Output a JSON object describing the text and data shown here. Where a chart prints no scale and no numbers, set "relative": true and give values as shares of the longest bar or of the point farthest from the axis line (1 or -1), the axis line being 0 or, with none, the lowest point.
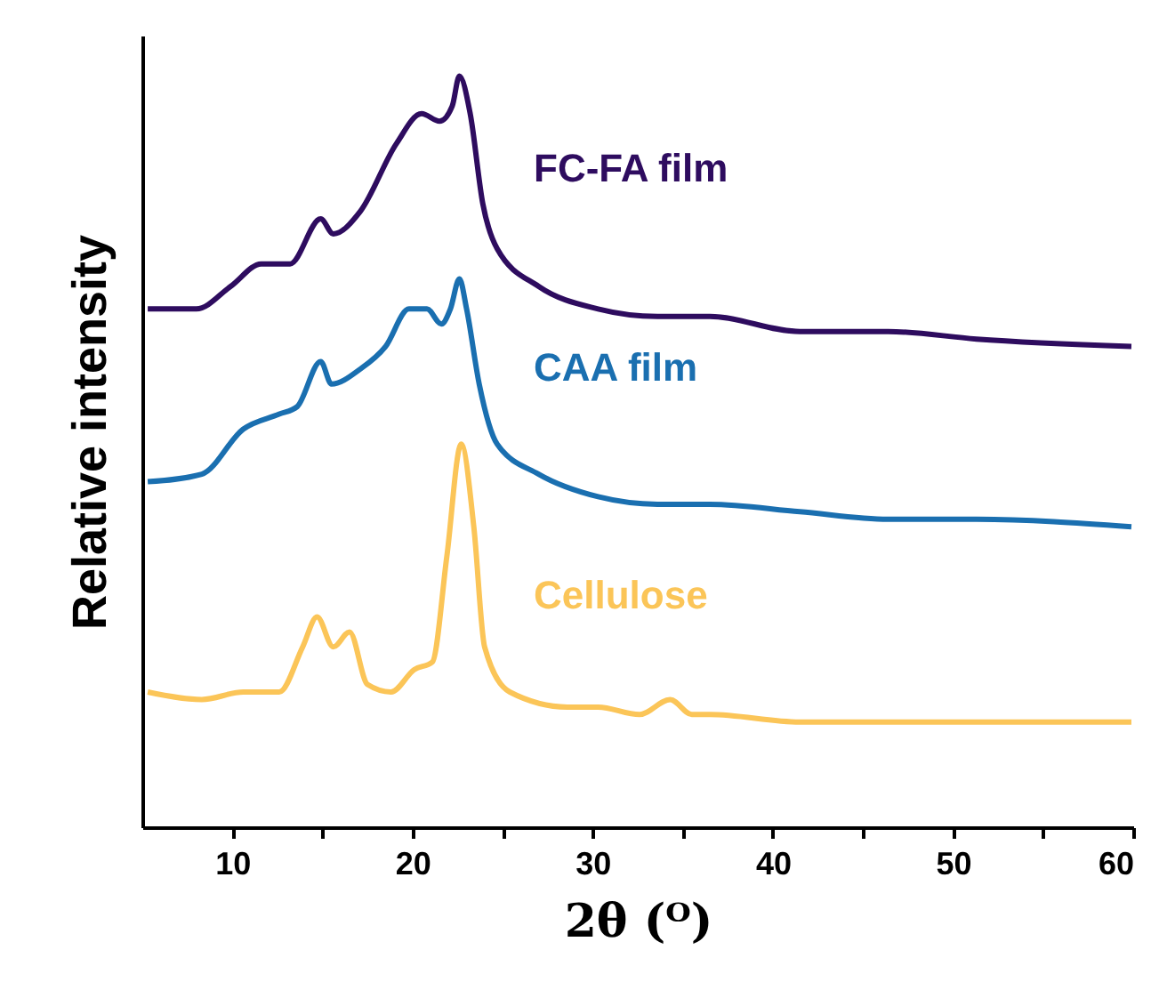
{
  "chart_data": {
    "type": "line",
    "relative": true,
    "xlabel": "2θ (ᴼ)",
    "ylabel": "Relative intensity",
    "xlim": [
      5,
      60
    ],
    "xticks": [
      10,
      {
        "value": 15,
        "label": null
      },
      20,
      {
        "value": 25,
        "label": null
      },
      30,
      {
        "value": 35,
        "label": null
      },
      40,
      {
        "value": 45,
        "label": null
      },
      50,
      {
        "value": 55,
        "label": null
      },
      60
    ],
    "tick_labels": "x",
    "grid": false,
    "marker": "none",
    "line_style": "solid",
    "series": [
      {
        "name": "FC-FA film",
        "color": "#2e0c5f",
        "x": [
          5.3,
          8.0,
          9.9,
          11.6,
          13.2,
          14.9,
          15.6,
          17.1,
          19.1,
          20.5,
          21.5,
          22.2,
          22.6,
          23.2,
          23.9,
          24.7,
          27.0,
          30.3,
          33.6,
          36.5,
          41.5,
          46.4,
          51.3,
          59.9
        ],
        "values": [
          0.69,
          0.69,
          0.72,
          0.75,
          0.75,
          0.81,
          0.79,
          0.82,
          0.91,
          0.95,
          0.94,
          0.96,
          1.0,
          0.95,
          0.83,
          0.77,
          0.72,
          0.69,
          0.68,
          0.68,
          0.66,
          0.66,
          0.65,
          0.64
        ]
      },
      {
        "name": "CAA film",
        "color": "#1a6fb0",
        "x": [
          5.3,
          8.3,
          10.6,
          12.6,
          13.6,
          14.9,
          15.5,
          17.1,
          18.5,
          19.8,
          20.8,
          21.6,
          22.1,
          22.6,
          23.0,
          23.7,
          24.7,
          27.0,
          30.3,
          33.6,
          36.5,
          41.5,
          46.4,
          51.3,
          59.9
        ],
        "values": [
          0.46,
          0.47,
          0.53,
          0.55,
          0.56,
          0.62,
          0.59,
          0.61,
          0.64,
          0.69,
          0.69,
          0.67,
          0.69,
          0.73,
          0.69,
          0.59,
          0.51,
          0.47,
          0.44,
          0.43,
          0.43,
          0.42,
          0.41,
          0.41,
          0.4
        ]
      },
      {
        "name": "Cellulose",
        "color": "#fbc558",
        "x": [
          5.3,
          8.3,
          10.6,
          12.6,
          13.9,
          14.7,
          15.6,
          16.5,
          17.5,
          18.8,
          20.1,
          21.1,
          21.9,
          22.7,
          23.4,
          24.0,
          25.4,
          28.6,
          30.3,
          32.6,
          34.3,
          35.5,
          36.5,
          41.5,
          46.4,
          51.3,
          59.9
        ],
        "values": [
          0.18,
          0.17,
          0.18,
          0.18,
          0.24,
          0.28,
          0.24,
          0.26,
          0.19,
          0.18,
          0.21,
          0.22,
          0.36,
          0.51,
          0.4,
          0.24,
          0.18,
          0.16,
          0.16,
          0.15,
          0.17,
          0.15,
          0.15,
          0.14,
          0.14,
          0.14,
          0.14
        ]
      }
    ]
  }
}
